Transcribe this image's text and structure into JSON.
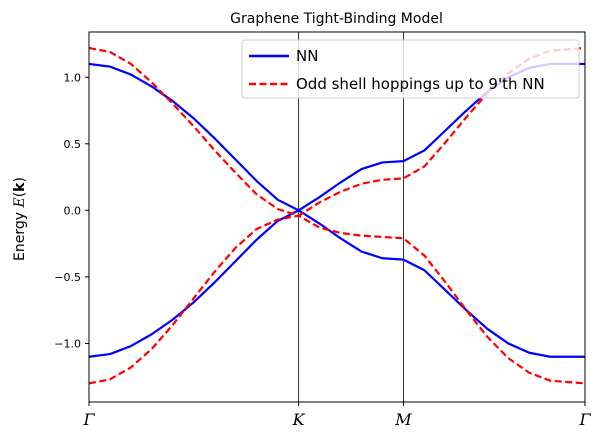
{
  "chart_data": {
    "type": "line",
    "title": "Graphene Tight-Binding Model",
    "xlabel": "",
    "ylabel": "Energy ",
    "ylabel_math": "E(k)",
    "x_ticks": [
      "Γ",
      "K",
      "M",
      "Γ"
    ],
    "x_tick_positions": [
      0,
      1,
      1.5,
      2.366
    ],
    "xlim": [
      0,
      2.366
    ],
    "ylim": [
      -1.44,
      1.34
    ],
    "y_ticks": [
      -1.0,
      -0.5,
      0.0,
      0.5,
      1.0
    ],
    "y_tick_labels": [
      "−1.0",
      "−0.5",
      "0.0",
      "0.5",
      "1.0"
    ],
    "vlines": [
      1,
      1.5
    ],
    "grid": false,
    "legend_position": "top-right",
    "series": [
      {
        "name": "NN",
        "color": "#0000ff",
        "style": "solid",
        "bands": [
          {
            "x": [
              0,
              0.1,
              0.2,
              0.3,
              0.4,
              0.5,
              0.6,
              0.7,
              0.8,
              0.9,
              1.0,
              1.1,
              1.2,
              1.3,
              1.4,
              1.5,
              1.6,
              1.7,
              1.8,
              1.9,
              2.0,
              2.1,
              2.2,
              2.366
            ],
            "y": [
              1.1,
              1.08,
              1.02,
              0.93,
              0.82,
              0.69,
              0.54,
              0.38,
              0.22,
              0.08,
              0.0,
              0.1,
              0.21,
              0.31,
              0.36,
              0.37,
              0.45,
              0.6,
              0.75,
              0.89,
              1.0,
              1.07,
              1.1,
              1.1
            ]
          },
          {
            "x": [
              0,
              0.1,
              0.2,
              0.3,
              0.4,
              0.5,
              0.6,
              0.7,
              0.8,
              0.9,
              1.0,
              1.1,
              1.2,
              1.3,
              1.4,
              1.5,
              1.6,
              1.7,
              1.8,
              1.9,
              2.0,
              2.1,
              2.2,
              2.366
            ],
            "y": [
              -1.1,
              -1.08,
              -1.02,
              -0.93,
              -0.82,
              -0.69,
              -0.54,
              -0.38,
              -0.22,
              -0.08,
              0.0,
              -0.1,
              -0.21,
              -0.31,
              -0.36,
              -0.37,
              -0.45,
              -0.6,
              -0.75,
              -0.89,
              -1.0,
              -1.07,
              -1.1,
              -1.1
            ]
          }
        ]
      },
      {
        "name": "Odd shell hoppings up to 9'th NN",
        "color": "#ff0000",
        "style": "dashed",
        "bands": [
          {
            "x": [
              0,
              0.1,
              0.2,
              0.3,
              0.4,
              0.5,
              0.6,
              0.7,
              0.8,
              0.9,
              1.0,
              1.1,
              1.2,
              1.3,
              1.4,
              1.5,
              1.6,
              1.7,
              1.8,
              1.9,
              2.0,
              2.1,
              2.2,
              2.366
            ],
            "y": [
              1.22,
              1.19,
              1.1,
              0.96,
              0.8,
              0.63,
              0.45,
              0.28,
              0.12,
              0.01,
              -0.04,
              0.06,
              0.14,
              0.2,
              0.23,
              0.24,
              0.33,
              0.51,
              0.7,
              0.88,
              1.03,
              1.14,
              1.2,
              1.22
            ]
          },
          {
            "x": [
              0,
              0.1,
              0.2,
              0.3,
              0.4,
              0.5,
              0.6,
              0.7,
              0.8,
              0.9,
              1.0,
              1.1,
              1.2,
              1.3,
              1.4,
              1.5,
              1.6,
              1.7,
              1.8,
              1.9,
              2.0,
              2.1,
              2.2,
              2.366
            ],
            "y": [
              -1.3,
              -1.27,
              -1.18,
              -1.04,
              -0.86,
              -0.66,
              -0.46,
              -0.28,
              -0.14,
              -0.07,
              -0.04,
              -0.13,
              -0.17,
              -0.19,
              -0.2,
              -0.21,
              -0.34,
              -0.54,
              -0.75,
              -0.95,
              -1.11,
              -1.22,
              -1.28,
              -1.3
            ]
          }
        ]
      }
    ]
  }
}
